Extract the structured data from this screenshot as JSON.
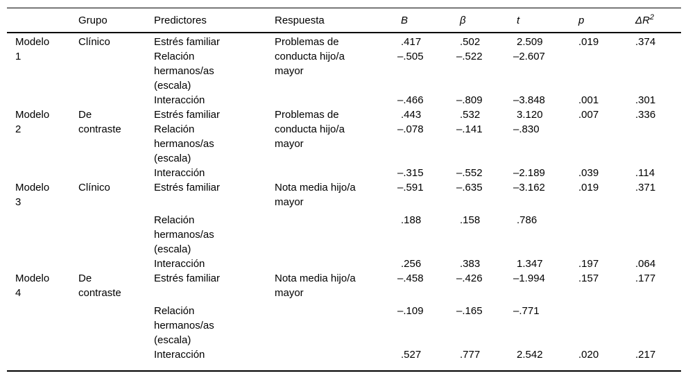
{
  "table": {
    "columns": [
      {
        "key": "model",
        "label": "",
        "italic": false
      },
      {
        "key": "grupo",
        "label": "Grupo",
        "italic": false
      },
      {
        "key": "predictores",
        "label": "Predictores",
        "italic": false
      },
      {
        "key": "respuesta",
        "label": "Respuesta",
        "italic": false
      },
      {
        "key": "B",
        "label": "B",
        "italic": true
      },
      {
        "key": "beta",
        "label": "β",
        "italic": true
      },
      {
        "key": "t",
        "label": "t",
        "italic": true
      },
      {
        "key": "p",
        "label": "p",
        "italic": true
      },
      {
        "key": "delta-r2",
        "label": "ΔR",
        "sup": "2",
        "italic": true
      }
    ],
    "lines": [
      {
        "cells": [
          "Modelo",
          "Clínico",
          "Estrés familiar",
          "Problemas de",
          ".417",
          ".502",
          "2.509",
          ".019",
          ".374"
        ]
      },
      {
        "cells": [
          "1",
          "",
          "Relación",
          "conducta hijo/a",
          "–.505",
          "–.522",
          "–2.607",
          "",
          ""
        ]
      },
      {
        "cells": [
          "",
          "",
          "hermanos/as",
          "mayor",
          "",
          "",
          "",
          "",
          ""
        ]
      },
      {
        "cells": [
          "",
          "",
          "(escala)",
          "",
          "",
          "",
          "",
          "",
          ""
        ]
      },
      {
        "cells": [
          "",
          "",
          "Interacción",
          "",
          "–.466",
          "–.809",
          "–3.848",
          ".001",
          ".301"
        ]
      },
      {
        "cells": [
          "Modelo",
          "De",
          "Estrés familiar",
          "Problemas de",
          ".443",
          ".532",
          "3.120",
          ".007",
          ".336"
        ]
      },
      {
        "cells": [
          "2",
          "contraste",
          "Relación",
          "conducta hijo/a",
          "–.078",
          "–.141",
          "–.830",
          "",
          ""
        ]
      },
      {
        "cells": [
          "",
          "",
          "hermanos/as",
          "mayor",
          "",
          "",
          "",
          "",
          ""
        ]
      },
      {
        "cells": [
          "",
          "",
          "(escala)",
          "",
          "",
          "",
          "",
          "",
          ""
        ]
      },
      {
        "cells": [
          "",
          "",
          "Interacción",
          "",
          "–.315",
          "–.552",
          "–2.189",
          ".039",
          ".114"
        ]
      },
      {
        "cells": [
          "Modelo",
          "Clínico",
          "Estrés familiar",
          "Nota media hijo/a",
          "–.591",
          "–.635",
          "–3.162",
          ".019",
          ".371"
        ]
      },
      {
        "cells": [
          "3",
          "",
          "",
          "mayor",
          "",
          "",
          "",
          "",
          ""
        ]
      },
      {
        "gap": true,
        "cells": [
          "",
          "",
          "Relación",
          "",
          ".188",
          ".158",
          ".786",
          "",
          ""
        ]
      },
      {
        "cells": [
          "",
          "",
          "hermanos/as",
          "",
          "",
          "",
          "",
          "",
          ""
        ]
      },
      {
        "cells": [
          "",
          "",
          "(escala)",
          "",
          "",
          "",
          "",
          "",
          ""
        ]
      },
      {
        "cells": [
          "",
          "",
          "Interacción",
          "",
          ".256",
          ".383",
          "1.347",
          ".197",
          ".064"
        ]
      },
      {
        "cells": [
          "Modelo",
          "De",
          "Estrés familiar",
          "Nota media hijo/a",
          "–.458",
          "–.426",
          "–1.994",
          ".157",
          ".177"
        ]
      },
      {
        "cells": [
          "4",
          "contraste",
          "",
          "mayor",
          "",
          "",
          "",
          "",
          ""
        ]
      },
      {
        "gap": true,
        "cells": [
          "",
          "",
          "Relación",
          "",
          "–.109",
          "–.165",
          "–.771",
          "",
          ""
        ]
      },
      {
        "cells": [
          "",
          "",
          "hermanos/as",
          "",
          "",
          "",
          "",
          "",
          ""
        ]
      },
      {
        "cells": [
          "",
          "",
          "(escala)",
          "",
          "",
          "",
          "",
          "",
          ""
        ]
      },
      {
        "cells": [
          "",
          "",
          "Interacción",
          "",
          ".527",
          ".777",
          "2.542",
          ".020",
          ".217"
        ]
      }
    ]
  }
}
